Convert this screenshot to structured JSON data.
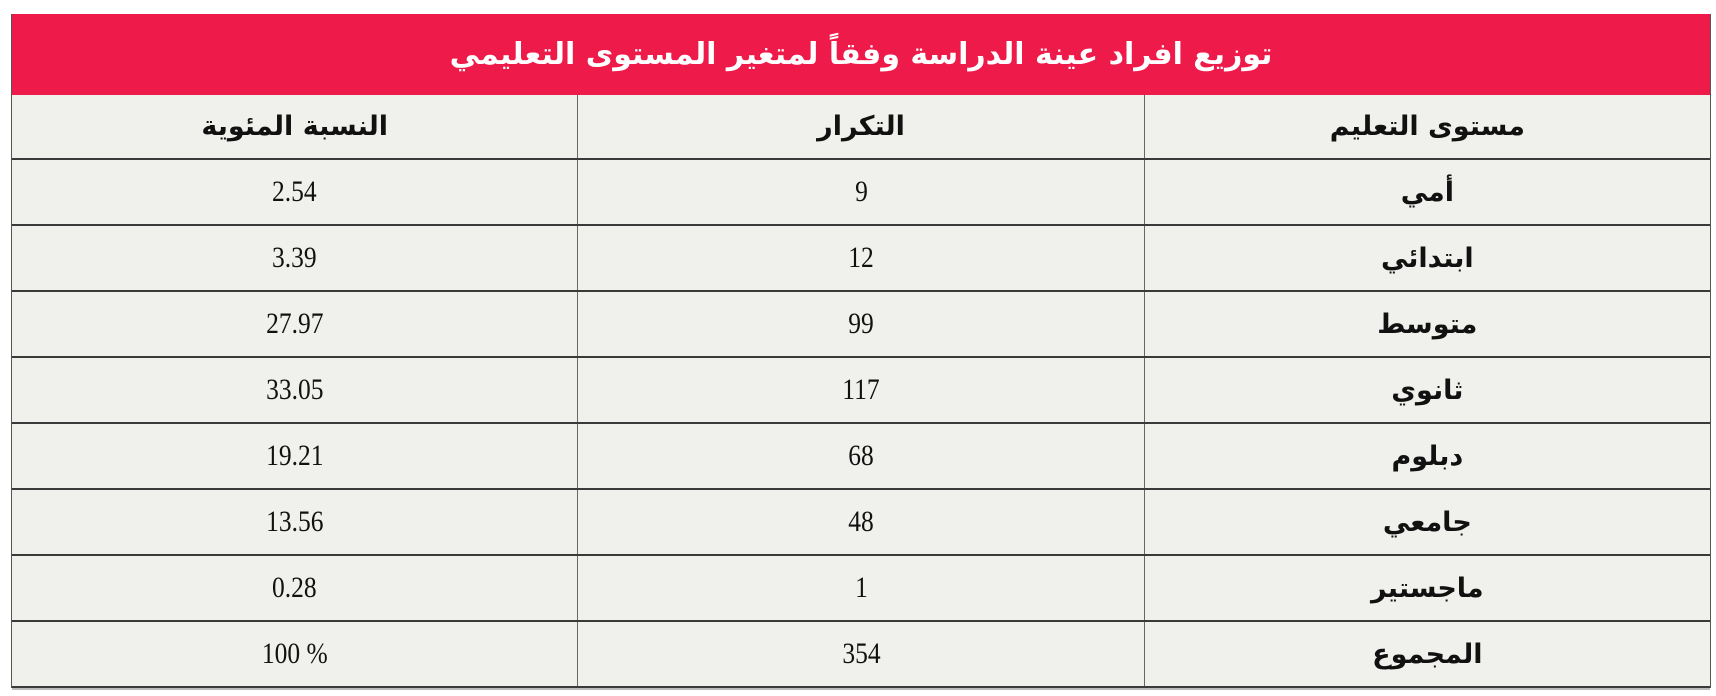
{
  "title": "توزيع افراد عينة الدراسة وفقاً لمتغير المستوى التعليمي",
  "colors": {
    "title_background": "#ee1a4a",
    "cell_background": "#f0f0ec"
  },
  "columns": [
    "مستوى التعليم",
    "التكرار",
    "النسبة المئوية"
  ],
  "rows": [
    {
      "level": "أمي",
      "frequency": "9",
      "percent": "2.54"
    },
    {
      "level": "ابتدائي",
      "frequency": "12",
      "percent": "3.39"
    },
    {
      "level": "متوسط",
      "frequency": "99",
      "percent": "27.97"
    },
    {
      "level": "ثانوي",
      "frequency": "117",
      "percent": "33.05"
    },
    {
      "level": "دبلوم",
      "frequency": "68",
      "percent": "19.21"
    },
    {
      "level": "جامعي",
      "frequency": "48",
      "percent": "13.56"
    },
    {
      "level": "ماجستير",
      "frequency": "1",
      "percent": "0.28"
    },
    {
      "level": "المجموع",
      "frequency": "354",
      "percent": "% 100"
    }
  ]
}
